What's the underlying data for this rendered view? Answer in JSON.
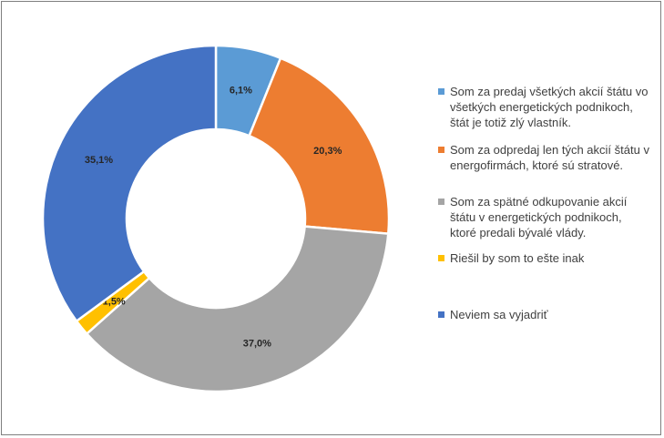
{
  "chart_data": {
    "type": "pie",
    "variant": "donut",
    "slices": [
      {
        "label": "Som za predaj všetkých akcií štátu vo\nvšetkých energetických podnikoch,\nštát je totiž zlý vlastník.",
        "value": 6.1,
        "display": "6,1%",
        "color": "#5b9bd5"
      },
      {
        "label": "Som za odpredaj len tých akcií štátu v\nenergofirmách, ktoré sú stratové.",
        "value": 20.3,
        "display": "20,3%",
        "color": "#ed7d31"
      },
      {
        "label": "Som za spätné odkupovanie akcií\nštátu v energetických podnikoch,\nktoré predali bývalé vlády.",
        "value": 37.0,
        "display": "37,0%",
        "color": "#a5a5a5"
      },
      {
        "label": "Riešil by som to ešte inak",
        "value": 1.5,
        "display": "1,5%",
        "color": "#ffc000"
      },
      {
        "label": "Neviem sa vyjadriť",
        "value": 35.1,
        "display": "35,1%",
        "color": "#4472c4"
      }
    ],
    "legend_position": "right"
  }
}
